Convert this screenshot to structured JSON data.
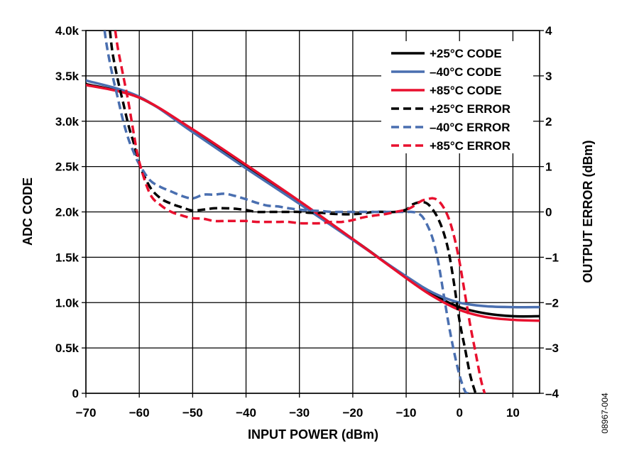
{
  "chart_data": {
    "type": "line",
    "xlabel": "INPUT POWER (dBm)",
    "ylabel_left": "ADC CODE",
    "ylabel_right": "OUTPUT ERROR (dBm)",
    "figure_id": "08967-004",
    "x_range": [
      -70,
      15
    ],
    "y_left_range": [
      0,
      4000
    ],
    "y_right_range": [
      -4,
      4
    ],
    "grid": true,
    "legend_position": "top-right",
    "x_ticks": [
      "−70",
      "−60",
      "−50",
      "−40",
      "−30",
      "−20",
      "−10",
      "0",
      "10"
    ],
    "x_tick_values": [
      -70,
      -60,
      -50,
      -40,
      -30,
      -20,
      -10,
      0,
      10
    ],
    "y_left_ticks": [
      "0",
      "0.5k",
      "1.0k",
      "1.5k",
      "2.0k",
      "2.5k",
      "3.0k",
      "3.5k",
      "4.0k"
    ],
    "y_left_tick_values": [
      0,
      500,
      1000,
      1500,
      2000,
      2500,
      3000,
      3500,
      4000
    ],
    "y_right_ticks": [
      "–4",
      "–3",
      "–2",
      "–1",
      "0",
      "1",
      "2",
      "3",
      "4"
    ],
    "y_right_tick_values": [
      -4,
      -3,
      -2,
      -1,
      0,
      1,
      2,
      3,
      4
    ],
    "series": [
      {
        "name": "+25°C CODE",
        "axis": "left",
        "color": "#000000",
        "dashed": false,
        "x": [
          -70,
          -60,
          -50,
          -40,
          -30,
          -20,
          -10,
          -5,
          0,
          5,
          10,
          15
        ],
        "y": [
          3410,
          3260,
          2900,
          2510,
          2110,
          1700,
          1280,
          1090,
          950,
          880,
          850,
          850
        ]
      },
      {
        "name": "–40°C CODE",
        "axis": "left",
        "color": "#4a6fb0",
        "dashed": false,
        "x": [
          -70,
          -60,
          -50,
          -40,
          -30,
          -20,
          -10,
          -5,
          0,
          5,
          10,
          15
        ],
        "y": [
          3450,
          3270,
          2880,
          2480,
          2090,
          1690,
          1290,
          1110,
          1000,
          960,
          950,
          950
        ]
      },
      {
        "name": "+85°C CODE",
        "axis": "left",
        "color": "#e8102e",
        "dashed": false,
        "x": [
          -70,
          -60,
          -50,
          -40,
          -30,
          -20,
          -10,
          -5,
          0,
          5,
          10,
          15
        ],
        "y": [
          3400,
          3260,
          2910,
          2520,
          2120,
          1700,
          1270,
          1070,
          920,
          840,
          810,
          800
        ]
      },
      {
        "name": "+25°C ERROR",
        "axis": "right",
        "color": "#000000",
        "dashed": true,
        "x": [
          -65.5,
          -65,
          -64,
          -63,
          -62,
          -61,
          -60,
          -58,
          -56,
          -54,
          -52,
          -50,
          -48,
          -46,
          -44,
          -42,
          -40,
          -38,
          -36,
          -34,
          -32,
          -30,
          -28,
          -26,
          -24,
          -22,
          -20,
          -18,
          -16,
          -14,
          -12,
          -10,
          -9,
          -8,
          -7,
          -6,
          -5,
          -4,
          -3,
          -2,
          -1,
          0,
          1,
          2,
          3
        ],
        "y": [
          4.0,
          3.5,
          2.9,
          2.4,
          1.9,
          1.5,
          1.05,
          0.55,
          0.3,
          0.18,
          0.1,
          0.03,
          0.05,
          0.08,
          0.08,
          0.07,
          0.04,
          0.0,
          0.0,
          0.0,
          0.0,
          0.0,
          -0.02,
          -0.02,
          -0.04,
          -0.05,
          -0.05,
          -0.03,
          0.0,
          0.0,
          0.0,
          0.05,
          0.15,
          0.2,
          0.22,
          0.18,
          0.05,
          -0.15,
          -0.45,
          -0.9,
          -1.6,
          -2.4,
          -3.0,
          -3.6,
          -4.0
        ]
      },
      {
        "name": "–40°C ERROR",
        "axis": "right",
        "color": "#4a6fb0",
        "dashed": true,
        "x": [
          -66.5,
          -66,
          -65,
          -64,
          -63,
          -62,
          -61,
          -60,
          -58,
          -56,
          -54,
          -52,
          -50,
          -48,
          -46,
          -44,
          -42,
          -40,
          -38,
          -36,
          -34,
          -32,
          -30,
          -28,
          -26,
          -24,
          -22,
          -20,
          -18,
          -16,
          -14,
          -12,
          -10,
          -9,
          -8,
          -7,
          -6,
          -5,
          -4,
          -3,
          -2,
          -1,
          0,
          1,
          1.6
        ],
        "y": [
          4.0,
          3.6,
          3.0,
          2.5,
          2.0,
          1.6,
          1.3,
          1.05,
          0.7,
          0.55,
          0.45,
          0.35,
          0.3,
          0.38,
          0.38,
          0.4,
          0.35,
          0.28,
          0.2,
          0.14,
          0.12,
          0.08,
          0.05,
          0.03,
          0.02,
          0.0,
          0.0,
          0.0,
          0.0,
          0.0,
          0.0,
          0.0,
          0.0,
          0.0,
          -0.02,
          -0.1,
          -0.3,
          -0.6,
          -1.1,
          -1.8,
          -2.5,
          -3.1,
          -3.6,
          -3.95,
          -4.0
        ]
      },
      {
        "name": "+85°C ERROR",
        "axis": "right",
        "color": "#e8102e",
        "dashed": true,
        "x": [
          -64.5,
          -64,
          -63,
          -62,
          -61,
          -60,
          -58,
          -56,
          -54,
          -52,
          -50,
          -48,
          -46,
          -44,
          -42,
          -40,
          -38,
          -36,
          -34,
          -32,
          -30,
          -28,
          -26,
          -24,
          -22,
          -20,
          -18,
          -16,
          -14,
          -12,
          -10,
          -9,
          -8,
          -7,
          -6,
          -5,
          -4,
          -3,
          -2,
          -1,
          0,
          1,
          2,
          3,
          4,
          4.7
        ],
        "y": [
          4.0,
          3.6,
          3.0,
          2.4,
          1.7,
          1.1,
          0.4,
          0.15,
          0.0,
          -0.08,
          -0.14,
          -0.15,
          -0.2,
          -0.2,
          -0.2,
          -0.2,
          -0.22,
          -0.22,
          -0.22,
          -0.22,
          -0.25,
          -0.25,
          -0.25,
          -0.22,
          -0.22,
          -0.18,
          -0.12,
          -0.08,
          -0.05,
          0.0,
          0.05,
          0.1,
          0.18,
          0.25,
          0.28,
          0.3,
          0.25,
          0.1,
          -0.15,
          -0.55,
          -1.1,
          -1.8,
          -2.5,
          -3.1,
          -3.7,
          -4.0
        ]
      }
    ]
  }
}
